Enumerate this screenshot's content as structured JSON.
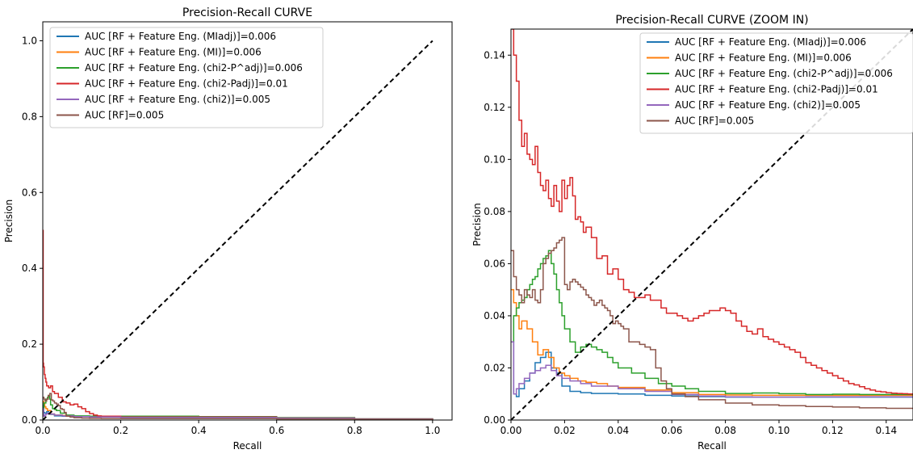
{
  "chart_data": [
    {
      "type": "line",
      "title": "Precision-Recall CURVE",
      "xlabel": "Recall",
      "ylabel": "Precision",
      "xlim": [
        0,
        1.05
      ],
      "ylim": [
        0,
        1.05
      ],
      "xticks": [
        "0.0",
        "0.2",
        "0.4",
        "0.6",
        "0.8",
        "1.0"
      ],
      "yticks": [
        "0.0",
        "0.2",
        "0.4",
        "0.6",
        "0.8",
        "1.0"
      ],
      "xtick_values": [
        0,
        0.2,
        0.4,
        0.6,
        0.8,
        1.0
      ],
      "ytick_values": [
        0,
        0.2,
        0.4,
        0.6,
        0.8,
        1.0
      ],
      "grid": false,
      "legend_placement": "top-left",
      "diagonal": {
        "style": "dashed",
        "color": "#000000",
        "x": [
          0,
          1
        ],
        "y": [
          0,
          1
        ]
      },
      "series": [
        {
          "name": "AUC [RF + Feature Eng. (MIadj)]=0.006",
          "color": "#1f77b4",
          "x": [
            0,
            0.002,
            0.005,
            0.01,
            0.015,
            0.02,
            0.03,
            0.05,
            0.08,
            0.12,
            0.2,
            0.4,
            0.6,
            0.8,
            1.0
          ],
          "y": [
            0.04,
            0.02,
            0.018,
            0.022,
            0.025,
            0.015,
            0.011,
            0.01,
            0.009,
            0.009,
            0.009,
            0.009,
            0.006,
            0.003,
            0.001
          ]
        },
        {
          "name": "AUC [RF + Feature Eng. (MI)]=0.006",
          "color": "#ff7f0e",
          "x": [
            0,
            0.002,
            0.005,
            0.008,
            0.012,
            0.02,
            0.03,
            0.05,
            0.08,
            0.12,
            0.2,
            0.4,
            0.6,
            0.8,
            1.0
          ],
          "y": [
            0.05,
            0.045,
            0.035,
            0.03,
            0.025,
            0.016,
            0.013,
            0.012,
            0.01,
            0.01,
            0.01,
            0.009,
            0.006,
            0.003,
            0.001
          ]
        },
        {
          "name": "AUC [RF + Feature Eng. (chi2-P^adj)]=0.006",
          "color": "#2ca02c",
          "x": [
            0,
            0.003,
            0.008,
            0.012,
            0.015,
            0.018,
            0.02,
            0.025,
            0.03,
            0.035,
            0.045,
            0.06,
            0.08,
            0.12,
            0.2,
            0.4,
            0.6,
            0.8,
            1.0
          ],
          "y": [
            0.03,
            0.045,
            0.055,
            0.06,
            0.065,
            0.055,
            0.04,
            0.03,
            0.028,
            0.025,
            0.018,
            0.013,
            0.011,
            0.01,
            0.01,
            0.009,
            0.006,
            0.003,
            0.001
          ]
        },
        {
          "name": "AUC [RF + Feature Eng. (chi2-Padj)]=0.01",
          "color": "#d62728",
          "x": [
            0,
            0.001,
            0.002,
            0.004,
            0.006,
            0.008,
            0.01,
            0.015,
            0.02,
            0.025,
            0.03,
            0.04,
            0.05,
            0.06,
            0.07,
            0.08,
            0.09,
            0.1,
            0.11,
            0.12,
            0.13,
            0.14,
            0.15,
            0.2,
            0.4,
            0.6,
            0.8,
            1.0
          ],
          "y": [
            0.5,
            0.15,
            0.14,
            0.12,
            0.11,
            0.1,
            0.09,
            0.085,
            0.09,
            0.075,
            0.07,
            0.06,
            0.048,
            0.045,
            0.04,
            0.042,
            0.035,
            0.03,
            0.022,
            0.017,
            0.013,
            0.011,
            0.01,
            0.008,
            0.008,
            0.005,
            0.002,
            0.001
          ]
        },
        {
          "name": "AUC [RF + Feature Eng. (chi2)]=0.005",
          "color": "#9467bd",
          "x": [
            0,
            0.002,
            0.005,
            0.008,
            0.012,
            0.02,
            0.03,
            0.05,
            0.08,
            0.12,
            0.2,
            0.4,
            0.6,
            0.8,
            1.0
          ],
          "y": [
            0.03,
            0.01,
            0.013,
            0.016,
            0.018,
            0.016,
            0.013,
            0.011,
            0.009,
            0.008,
            0.007,
            0.007,
            0.005,
            0.003,
            0.001
          ]
        },
        {
          "name": "AUC [RF]=0.005",
          "color": "#8c564b",
          "x": [
            0,
            0.003,
            0.006,
            0.01,
            0.014,
            0.018,
            0.022,
            0.026,
            0.03,
            0.035,
            0.04,
            0.045,
            0.05,
            0.055,
            0.06,
            0.07,
            0.08,
            0.1,
            0.12,
            0.15,
            0.2,
            0.4,
            0.6,
            0.8,
            1.0
          ],
          "y": [
            0.06,
            0.055,
            0.05,
            0.055,
            0.065,
            0.07,
            0.053,
            0.05,
            0.045,
            0.042,
            0.038,
            0.03,
            0.028,
            0.02,
            0.01,
            0.008,
            0.006,
            0.005,
            0.0045,
            0.004,
            0.004,
            0.004,
            0.003,
            0.002,
            0.001
          ]
        }
      ]
    },
    {
      "type": "line",
      "title": "Precision-Recall CURVE (ZOOM IN)",
      "xlabel": "Recall",
      "ylabel": "Precision",
      "xlim": [
        0,
        0.15
      ],
      "ylim": [
        0,
        0.15
      ],
      "xticks": [
        "0.00",
        "0.02",
        "0.04",
        "0.06",
        "0.08",
        "0.10",
        "0.12",
        "0.14"
      ],
      "yticks": [
        "0.00",
        "0.02",
        "0.04",
        "0.06",
        "0.08",
        "0.10",
        "0.12",
        "0.14"
      ],
      "xtick_values": [
        0,
        0.02,
        0.04,
        0.06,
        0.08,
        0.1,
        0.12,
        0.14
      ],
      "ytick_values": [
        0,
        0.02,
        0.04,
        0.06,
        0.08,
        0.1,
        0.12,
        0.14
      ],
      "grid": false,
      "legend_placement": "top-right",
      "diagonal": {
        "style": "dashed",
        "color": "#000000",
        "x": [
          0,
          0.15
        ],
        "y": [
          0,
          0.15
        ]
      },
      "series": [
        {
          "name": "AUC [RF + Feature Eng. (MIadj)]=0.006",
          "color": "#1f77b4",
          "x": [
            0,
            0.001,
            0.002,
            0.003,
            0.005,
            0.007,
            0.009,
            0.011,
            0.013,
            0.015,
            0.017,
            0.019,
            0.022,
            0.026,
            0.03,
            0.04,
            0.05,
            0.06,
            0.07,
            0.08,
            0.09,
            0.1,
            0.11,
            0.12,
            0.13,
            0.14,
            0.15
          ],
          "y": [
            0.03,
            0.01,
            0.009,
            0.012,
            0.015,
            0.018,
            0.022,
            0.024,
            0.026,
            0.02,
            0.018,
            0.013,
            0.011,
            0.0105,
            0.0102,
            0.01,
            0.0095,
            0.0092,
            0.009,
            0.0088,
            0.0088,
            0.0088,
            0.0088,
            0.0088,
            0.0088,
            0.0088,
            0.0088
          ]
        },
        {
          "name": "AUC [RF + Feature Eng. (MI)]=0.006",
          "color": "#ff7f0e",
          "x": [
            0,
            0.001,
            0.002,
            0.003,
            0.004,
            0.006,
            0.008,
            0.01,
            0.012,
            0.014,
            0.016,
            0.018,
            0.02,
            0.022,
            0.025,
            0.028,
            0.032,
            0.036,
            0.04,
            0.05,
            0.06,
            0.07,
            0.08,
            0.09,
            0.1,
            0.11,
            0.12,
            0.13,
            0.14,
            0.15
          ],
          "y": [
            0.05,
            0.045,
            0.04,
            0.035,
            0.038,
            0.035,
            0.03,
            0.025,
            0.027,
            0.024,
            0.02,
            0.018,
            0.017,
            0.016,
            0.015,
            0.0145,
            0.014,
            0.013,
            0.0125,
            0.0115,
            0.0105,
            0.0098,
            0.0096,
            0.0095,
            0.0095,
            0.0095,
            0.0095,
            0.0095,
            0.0095,
            0.0095
          ]
        },
        {
          "name": "AUC [RF + Feature Eng. (chi2-P^adj)]=0.006",
          "color": "#2ca02c",
          "x": [
            0,
            0.001,
            0.002,
            0.003,
            0.004,
            0.005,
            0.006,
            0.007,
            0.008,
            0.009,
            0.01,
            0.011,
            0.012,
            0.013,
            0.014,
            0.015,
            0.016,
            0.017,
            0.018,
            0.019,
            0.02,
            0.022,
            0.024,
            0.026,
            0.028,
            0.03,
            0.032,
            0.034,
            0.036,
            0.038,
            0.04,
            0.045,
            0.05,
            0.055,
            0.06,
            0.065,
            0.07,
            0.08,
            0.09,
            0.1,
            0.11,
            0.12,
            0.13,
            0.14,
            0.15
          ],
          "y": [
            0.03,
            0.04,
            0.043,
            0.045,
            0.046,
            0.047,
            0.05,
            0.052,
            0.054,
            0.055,
            0.058,
            0.06,
            0.062,
            0.063,
            0.065,
            0.06,
            0.056,
            0.05,
            0.045,
            0.04,
            0.035,
            0.03,
            0.026,
            0.028,
            0.029,
            0.028,
            0.027,
            0.026,
            0.024,
            0.022,
            0.02,
            0.018,
            0.016,
            0.014,
            0.013,
            0.012,
            0.011,
            0.0102,
            0.0104,
            0.0101,
            0.0098,
            0.0099,
            0.0098,
            0.0098,
            0.0098
          ]
        },
        {
          "name": "AUC [RF + Feature Eng. (chi2-Padj)]=0.01",
          "color": "#d62728",
          "x": [
            0,
            0.0005,
            0.001,
            0.002,
            0.003,
            0.004,
            0.005,
            0.006,
            0.007,
            0.008,
            0.009,
            0.01,
            0.011,
            0.012,
            0.013,
            0.014,
            0.015,
            0.016,
            0.017,
            0.018,
            0.019,
            0.02,
            0.021,
            0.022,
            0.023,
            0.024,
            0.025,
            0.026,
            0.027,
            0.028,
            0.03,
            0.032,
            0.034,
            0.036,
            0.038,
            0.04,
            0.042,
            0.044,
            0.046,
            0.048,
            0.05,
            0.052,
            0.054,
            0.056,
            0.058,
            0.06,
            0.062,
            0.064,
            0.066,
            0.068,
            0.07,
            0.072,
            0.074,
            0.076,
            0.078,
            0.08,
            0.082,
            0.084,
            0.086,
            0.088,
            0.09,
            0.092,
            0.094,
            0.096,
            0.098,
            0.1,
            0.102,
            0.104,
            0.106,
            0.108,
            0.11,
            0.112,
            0.114,
            0.116,
            0.118,
            0.12,
            0.122,
            0.124,
            0.126,
            0.128,
            0.13,
            0.132,
            0.134,
            0.136,
            0.138,
            0.14,
            0.142,
            0.144,
            0.146,
            0.148,
            0.15
          ],
          "y": [
            0.16,
            0.15,
            0.14,
            0.13,
            0.115,
            0.105,
            0.11,
            0.102,
            0.1,
            0.098,
            0.105,
            0.095,
            0.09,
            0.088,
            0.092,
            0.085,
            0.082,
            0.09,
            0.084,
            0.08,
            0.092,
            0.085,
            0.09,
            0.093,
            0.086,
            0.077,
            0.078,
            0.076,
            0.072,
            0.074,
            0.07,
            0.062,
            0.063,
            0.056,
            0.058,
            0.054,
            0.05,
            0.049,
            0.047,
            0.047,
            0.048,
            0.046,
            0.046,
            0.043,
            0.041,
            0.041,
            0.04,
            0.039,
            0.038,
            0.039,
            0.04,
            0.041,
            0.042,
            0.042,
            0.043,
            0.042,
            0.041,
            0.038,
            0.036,
            0.034,
            0.033,
            0.035,
            0.032,
            0.031,
            0.03,
            0.029,
            0.028,
            0.027,
            0.026,
            0.024,
            0.022,
            0.021,
            0.02,
            0.019,
            0.018,
            0.017,
            0.016,
            0.015,
            0.014,
            0.0135,
            0.0128,
            0.012,
            0.0115,
            0.011,
            0.0108,
            0.0105,
            0.0103,
            0.0102,
            0.0101,
            0.01,
            0.01
          ]
        },
        {
          "name": "AUC [RF + Feature Eng. (chi2)]=0.005",
          "color": "#9467bd",
          "x": [
            0,
            0.001,
            0.002,
            0.003,
            0.005,
            0.007,
            0.009,
            0.011,
            0.013,
            0.015,
            0.017,
            0.019,
            0.022,
            0.026,
            0.03,
            0.04,
            0.05,
            0.06,
            0.07,
            0.08,
            0.09,
            0.1,
            0.11,
            0.12,
            0.13,
            0.14,
            0.15
          ],
          "y": [
            0.03,
            0.01,
            0.012,
            0.014,
            0.016,
            0.018,
            0.019,
            0.02,
            0.021,
            0.019,
            0.017,
            0.016,
            0.015,
            0.014,
            0.013,
            0.012,
            0.011,
            0.0098,
            0.0092,
            0.0089,
            0.0088,
            0.0088,
            0.0089,
            0.0089,
            0.0089,
            0.0089,
            0.0089
          ]
        },
        {
          "name": "AUC [RF]=0.005",
          "color": "#8c564b",
          "x": [
            0,
            0.001,
            0.002,
            0.003,
            0.004,
            0.005,
            0.006,
            0.007,
            0.008,
            0.009,
            0.01,
            0.011,
            0.012,
            0.013,
            0.014,
            0.015,
            0.016,
            0.017,
            0.018,
            0.019,
            0.02,
            0.021,
            0.022,
            0.023,
            0.024,
            0.025,
            0.026,
            0.027,
            0.028,
            0.029,
            0.03,
            0.031,
            0.032,
            0.033,
            0.034,
            0.035,
            0.036,
            0.037,
            0.038,
            0.039,
            0.04,
            0.041,
            0.042,
            0.044,
            0.046,
            0.048,
            0.05,
            0.052,
            0.054,
            0.056,
            0.058,
            0.06,
            0.065,
            0.07,
            0.08,
            0.09,
            0.1,
            0.11,
            0.12,
            0.13,
            0.14,
            0.15
          ],
          "y": [
            0.065,
            0.055,
            0.05,
            0.048,
            0.045,
            0.05,
            0.048,
            0.047,
            0.05,
            0.046,
            0.045,
            0.05,
            0.06,
            0.062,
            0.064,
            0.065,
            0.066,
            0.068,
            0.069,
            0.07,
            0.052,
            0.05,
            0.053,
            0.054,
            0.053,
            0.052,
            0.051,
            0.05,
            0.048,
            0.047,
            0.046,
            0.044,
            0.045,
            0.046,
            0.044,
            0.043,
            0.042,
            0.04,
            0.037,
            0.038,
            0.037,
            0.036,
            0.035,
            0.03,
            0.03,
            0.029,
            0.028,
            0.027,
            0.02,
            0.015,
            0.012,
            0.01,
            0.009,
            0.0078,
            0.0065,
            0.0058,
            0.0055,
            0.0052,
            0.005,
            0.0047,
            0.0045,
            0.0044
          ]
        }
      ]
    }
  ]
}
